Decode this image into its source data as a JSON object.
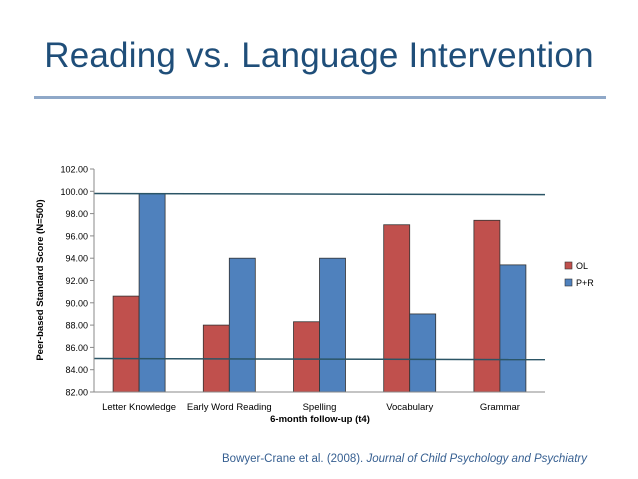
{
  "slide": {
    "title": "Reading vs. Language Intervention"
  },
  "citation": {
    "authors": "Bowyer-Crane et al. (2008). ",
    "journal": "Journal of Child Psychology and Psychiatry"
  },
  "chart_data": {
    "type": "bar",
    "categories": [
      "Letter Knowledge",
      "Early Word Reading",
      "Spelling",
      "Vocabulary",
      "Grammar"
    ],
    "series": [
      {
        "name": "OL",
        "color": "#c0504d",
        "values": [
          90.6,
          88.0,
          88.3,
          97.0,
          97.4
        ]
      },
      {
        "name": "P+R",
        "color": "#4f81bd",
        "values": [
          99.8,
          94.0,
          94.0,
          89.0,
          93.4
        ]
      }
    ],
    "xlabel": "6-month follow-up (t4)",
    "ylabel": "Peer-based Standard Score (N=500)",
    "ylim": [
      82,
      102
    ],
    "yticks": [
      "82.00",
      "84.00",
      "86.00",
      "88.00",
      "90.00",
      "92.00",
      "94.00",
      "96.00",
      "98.00",
      "100.00",
      "102.00"
    ],
    "grid": false,
    "legend": "right",
    "reference_lines": [
      {
        "y_start": 99.8,
        "y_end": 99.7,
        "color": "#2b5566"
      },
      {
        "y_start": 85.0,
        "y_end": 84.9,
        "color": "#2b5566"
      }
    ]
  }
}
